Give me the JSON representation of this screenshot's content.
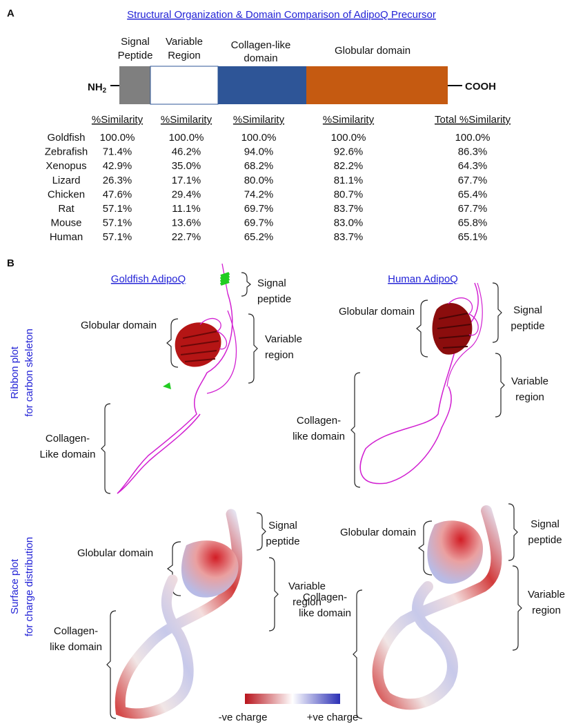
{
  "panel_a": {
    "label": "A",
    "title": "Structural Organization & Domain Comparison of AdipoQ Precursor",
    "domains": [
      [
        "Signal",
        "Peptide"
      ],
      [
        "Variable",
        "Region"
      ],
      [
        "Collagen-like",
        "domain"
      ],
      [
        "Globular domain"
      ]
    ],
    "n_terminus": {
      "base": "NH",
      "sub": "2"
    },
    "c_terminus": "COOH",
    "table": {
      "headers": [
        "%Similarity",
        "%Similarity",
        "%Similarity",
        "%Similarity",
        "Total %Similarity"
      ],
      "rows": [
        [
          "Goldfish",
          "100.0%",
          "100.0%",
          "100.0%",
          "100.0%",
          "100.0%"
        ],
        [
          "Zebrafish",
          "71.4%",
          "46.2%",
          "94.0%",
          "92.6%",
          "86.3%"
        ],
        [
          "Xenopus",
          "42.9%",
          "35.0%",
          "68.2%",
          "82.2%",
          "64.3%"
        ],
        [
          "Lizard",
          "26.3%",
          "17.1%",
          "80.0%",
          "81.1%",
          "67.7%"
        ],
        [
          "Chicken",
          "47.6%",
          "29.4%",
          "74.2%",
          "80.7%",
          "65.4%"
        ],
        [
          "Rat",
          "57.1%",
          "11.1%",
          "69.7%",
          "83.7%",
          "67.7%"
        ],
        [
          "Mouse",
          "57.1%",
          "13.6%",
          "69.7%",
          "83.0%",
          "65.8%"
        ],
        [
          "Human",
          "57.1%",
          "22.7%",
          "65.2%",
          "83.7%",
          "65.1%"
        ]
      ]
    }
  },
  "panel_b": {
    "label": "B",
    "species_titles": [
      "Goldfish AdipoQ",
      "Human AdipoQ"
    ],
    "row_labels": [
      [
        "Ribbon plot",
        "for carbon skeleton"
      ],
      [
        "Surface plot",
        "for charge distribution"
      ]
    ],
    "ribbon_goldfish": {
      "signal": [
        "Signal",
        "peptide"
      ],
      "globular": [
        "Globular domain"
      ],
      "variable": [
        "Variable",
        "region"
      ],
      "collagen": [
        "Collagen-",
        "Like domain"
      ]
    },
    "ribbon_human": {
      "globular": [
        "Globular domain"
      ],
      "signal": [
        "Signal",
        "peptide"
      ],
      "variable": [
        "Variable",
        "region"
      ],
      "collagen": [
        "Collagen-",
        "like domain"
      ]
    },
    "surface_goldfish": {
      "signal": [
        "Signal",
        "peptide"
      ],
      "globular": [
        "Globular domain"
      ],
      "variable": [
        "Variable",
        "region"
      ],
      "collagen": [
        "Collagen-",
        "like domain"
      ]
    },
    "surface_human": {
      "globular": [
        "Globular domain"
      ],
      "signal": [
        "Signal",
        "peptide"
      ],
      "variable": [
        "Variable",
        "region"
      ],
      "collagen": [
        "Collagen-",
        "like domain"
      ]
    },
    "legend": [
      "-ve charge",
      "+ve charge"
    ]
  }
}
